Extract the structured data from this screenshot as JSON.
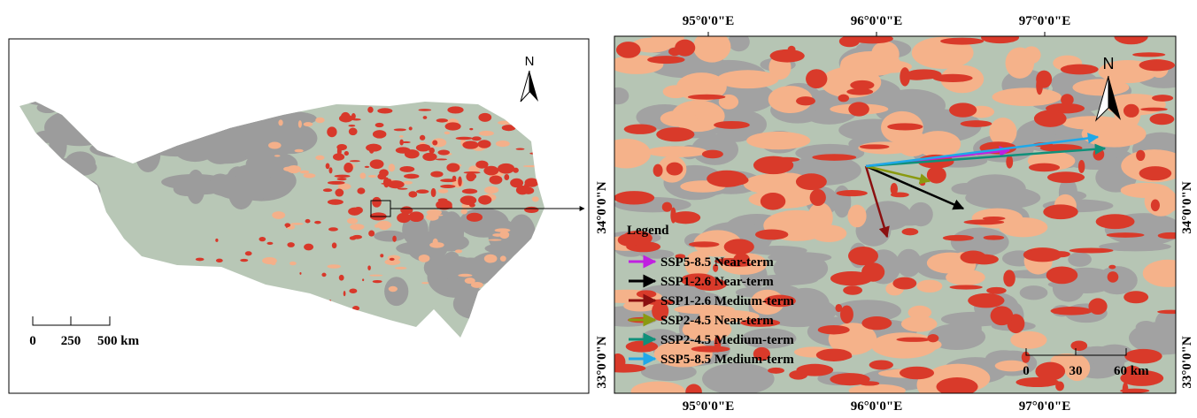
{
  "left_panel": {
    "north": "N",
    "scale_bar": [
      "0",
      "250",
      "500 km"
    ]
  },
  "right_panel": {
    "north": "N",
    "lon_labels": [
      "95°0'0\"E",
      "96°0'0\"E",
      "97°0'0\"E"
    ],
    "lat_labels": [
      "34°0'0\"N",
      "33°0'0\"N"
    ],
    "scale_bar": [
      "0",
      "30",
      "60 km"
    ],
    "legend": {
      "title": "Legend",
      "items": [
        {
          "name": "SSP5-8.5 Near-term",
          "color": "#c020e0"
        },
        {
          "name": "SSP1-2.6 Near-term",
          "color": "#000000"
        },
        {
          "name": "SSP1-2.6 Medium-term",
          "color": "#8b1010"
        },
        {
          "name": "SSP2-4.5 Near-term",
          "color": "#8a9a10"
        },
        {
          "name": "SSP2-4.5 Medium-term",
          "color": "#10907a"
        },
        {
          "name": "SSP5-8.5 Medium-term",
          "color": "#20a8e8"
        }
      ]
    }
  }
}
